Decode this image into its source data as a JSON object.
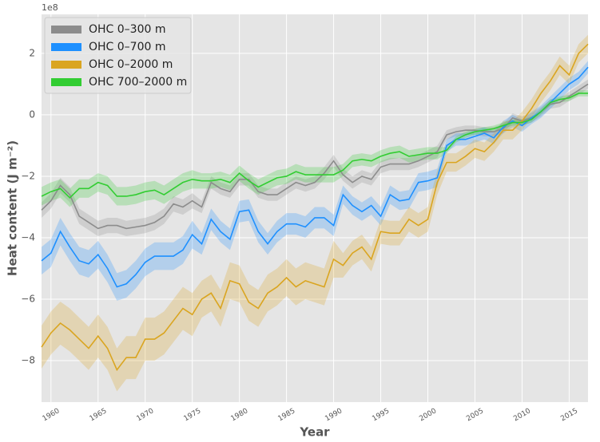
{
  "chart_data": {
    "type": "line",
    "offset_label": "1e8",
    "x_label": "Year",
    "y_label": "Heat content (J m⁻²)",
    "x": [
      1959,
      1960,
      1961,
      1962,
      1963,
      1964,
      1965,
      1966,
      1967,
      1968,
      1969,
      1970,
      1971,
      1972,
      1973,
      1974,
      1975,
      1976,
      1977,
      1978,
      1979,
      1980,
      1981,
      1982,
      1983,
      1984,
      1985,
      1986,
      1987,
      1988,
      1989,
      1990,
      1991,
      1992,
      1993,
      1994,
      1995,
      1996,
      1997,
      1998,
      1999,
      2000,
      2001,
      2002,
      2003,
      2004,
      2005,
      2006,
      2007,
      2008,
      2009,
      2010,
      2011,
      2012,
      2013,
      2014,
      2015,
      2016,
      2017
    ],
    "xlim": [
      1959,
      2017
    ],
    "xticks": [
      1960,
      1965,
      1970,
      1975,
      1980,
      1985,
      1990,
      1995,
      2000,
      2005,
      2010,
      2015
    ],
    "ylim": [
      -9.35,
      3.27
    ],
    "yticks": [
      {
        "value": -8,
        "label": "−8"
      },
      {
        "value": -6,
        "label": "−6"
      },
      {
        "value": -4,
        "label": "−4"
      },
      {
        "value": -2,
        "label": "−2"
      },
      0,
      2
    ],
    "grid": true,
    "legend": "upper left",
    "series": [
      {
        "name": "OHC 0–300 m",
        "color": "#8c8c8c",
        "values": [
          -3.1,
          -2.8,
          -2.3,
          -2.6,
          -3.3,
          -3.5,
          -3.7,
          -3.6,
          -3.6,
          -3.7,
          -3.65,
          -3.6,
          -3.5,
          -3.3,
          -2.9,
          -3.0,
          -2.8,
          -3.0,
          -2.2,
          -2.4,
          -2.5,
          -2.1,
          -2.1,
          -2.5,
          -2.6,
          -2.6,
          -2.4,
          -2.2,
          -2.3,
          -2.2,
          -1.9,
          -1.5,
          -1.95,
          -2.2,
          -2.0,
          -2.1,
          -1.7,
          -1.6,
          -1.6,
          -1.6,
          -1.5,
          -1.35,
          -1.2,
          -0.65,
          -0.55,
          -0.5,
          -0.5,
          -0.55,
          -0.55,
          -0.45,
          -0.1,
          -0.2,
          -0.1,
          0.1,
          0.35,
          0.4,
          0.6,
          0.8,
          1.0
        ],
        "errors": [
          0.25,
          0.25,
          0.25,
          0.25,
          0.25,
          0.25,
          0.25,
          0.25,
          0.25,
          0.25,
          0.25,
          0.25,
          0.25,
          0.25,
          0.25,
          0.25,
          0.25,
          0.2,
          0.2,
          0.2,
          0.2,
          0.2,
          0.2,
          0.2,
          0.2,
          0.2,
          0.2,
          0.2,
          0.2,
          0.2,
          0.2,
          0.2,
          0.2,
          0.2,
          0.2,
          0.2,
          0.2,
          0.2,
          0.2,
          0.2,
          0.2,
          0.2,
          0.2,
          0.15,
          0.15,
          0.15,
          0.15,
          0.15,
          0.15,
          0.15,
          0.15,
          0.15,
          0.15,
          0.15,
          0.15,
          0.15,
          0.15,
          0.15,
          0.15
        ]
      },
      {
        "name": "OHC 0–700 m",
        "color": "#1e90ff",
        "values": [
          -4.75,
          -4.5,
          -3.8,
          -4.3,
          -4.75,
          -4.85,
          -4.55,
          -5.0,
          -5.6,
          -5.5,
          -5.2,
          -4.8,
          -4.6,
          -4.6,
          -4.6,
          -4.4,
          -3.9,
          -4.2,
          -3.4,
          -3.8,
          -4.05,
          -3.15,
          -3.1,
          -3.8,
          -4.2,
          -3.8,
          -3.55,
          -3.55,
          -3.65,
          -3.35,
          -3.35,
          -3.6,
          -2.6,
          -2.95,
          -3.15,
          -2.95,
          -3.3,
          -2.6,
          -2.8,
          -2.75,
          -2.2,
          -2.15,
          -2.05,
          -1.0,
          -0.8,
          -0.8,
          -0.7,
          -0.6,
          -0.75,
          -0.4,
          -0.2,
          -0.35,
          -0.1,
          0.1,
          0.4,
          0.7,
          1.0,
          1.2,
          1.55
        ],
        "errors": [
          0.45,
          0.45,
          0.45,
          0.45,
          0.45,
          0.45,
          0.45,
          0.45,
          0.45,
          0.45,
          0.45,
          0.45,
          0.45,
          0.45,
          0.45,
          0.45,
          0.45,
          0.35,
          0.35,
          0.35,
          0.35,
          0.35,
          0.35,
          0.35,
          0.35,
          0.35,
          0.35,
          0.35,
          0.35,
          0.35,
          0.35,
          0.35,
          0.3,
          0.3,
          0.3,
          0.3,
          0.3,
          0.3,
          0.3,
          0.3,
          0.3,
          0.3,
          0.3,
          0.2,
          0.2,
          0.2,
          0.2,
          0.2,
          0.2,
          0.2,
          0.2,
          0.2,
          0.2,
          0.2,
          0.2,
          0.2,
          0.2,
          0.2,
          0.2
        ]
      },
      {
        "name": "OHC 0–2000 m",
        "color": "#daa520",
        "values": [
          -7.56,
          -7.1,
          -6.78,
          -7.0,
          -7.3,
          -7.6,
          -7.2,
          -7.6,
          -8.3,
          -7.9,
          -7.9,
          -7.3,
          -7.3,
          -7.1,
          -6.7,
          -6.3,
          -6.5,
          -6.0,
          -5.8,
          -6.3,
          -5.4,
          -5.5,
          -6.1,
          -6.3,
          -5.8,
          -5.6,
          -5.3,
          -5.6,
          -5.4,
          -5.5,
          -5.6,
          -4.7,
          -4.9,
          -4.5,
          -4.3,
          -4.7,
          -3.8,
          -3.85,
          -3.85,
          -3.4,
          -3.6,
          -3.4,
          -2.2,
          -1.55,
          -1.55,
          -1.35,
          -1.1,
          -1.2,
          -0.9,
          -0.5,
          -0.5,
          -0.2,
          0.2,
          0.7,
          1.1,
          1.6,
          1.3,
          2.0,
          2.3
        ],
        "errors": [
          0.7,
          0.7,
          0.7,
          0.7,
          0.7,
          0.7,
          0.7,
          0.7,
          0.7,
          0.7,
          0.7,
          0.7,
          0.7,
          0.7,
          0.7,
          0.7,
          0.7,
          0.6,
          0.6,
          0.6,
          0.6,
          0.6,
          0.6,
          0.6,
          0.6,
          0.6,
          0.6,
          0.6,
          0.6,
          0.6,
          0.6,
          0.6,
          0.4,
          0.4,
          0.4,
          0.4,
          0.4,
          0.4,
          0.4,
          0.4,
          0.4,
          0.4,
          0.4,
          0.3,
          0.3,
          0.3,
          0.3,
          0.3,
          0.3,
          0.3,
          0.3,
          0.3,
          0.3,
          0.3,
          0.3,
          0.3,
          0.3,
          0.3,
          0.3
        ]
      },
      {
        "name": "OHC 700–2000 m",
        "color": "#32cd32",
        "values": [
          -2.65,
          -2.5,
          -2.4,
          -2.7,
          -2.4,
          -2.4,
          -2.2,
          -2.3,
          -2.65,
          -2.65,
          -2.6,
          -2.5,
          -2.45,
          -2.6,
          -2.4,
          -2.2,
          -2.1,
          -2.15,
          -2.15,
          -2.1,
          -2.2,
          -1.9,
          -2.15,
          -2.35,
          -2.2,
          -2.05,
          -2.0,
          -1.85,
          -1.95,
          -1.95,
          -1.95,
          -1.95,
          -1.8,
          -1.5,
          -1.45,
          -1.5,
          -1.35,
          -1.25,
          -1.2,
          -1.35,
          -1.3,
          -1.25,
          -1.25,
          -1.15,
          -0.8,
          -0.65,
          -0.55,
          -0.5,
          -0.45,
          -0.35,
          -0.25,
          -0.25,
          -0.15,
          0.1,
          0.4,
          0.5,
          0.55,
          0.7,
          0.7
        ],
        "errors": [
          0.3,
          0.3,
          0.3,
          0.3,
          0.3,
          0.3,
          0.3,
          0.3,
          0.3,
          0.3,
          0.3,
          0.3,
          0.3,
          0.3,
          0.3,
          0.3,
          0.3,
          0.25,
          0.25,
          0.25,
          0.25,
          0.25,
          0.25,
          0.25,
          0.25,
          0.25,
          0.25,
          0.25,
          0.25,
          0.25,
          0.25,
          0.25,
          0.2,
          0.2,
          0.2,
          0.2,
          0.2,
          0.2,
          0.2,
          0.2,
          0.2,
          0.2,
          0.2,
          0.1,
          0.1,
          0.1,
          0.1,
          0.1,
          0.1,
          0.1,
          0.1,
          0.1,
          0.1,
          0.1,
          0.1,
          0.1,
          0.1,
          0.1,
          0.1
        ]
      }
    ]
  }
}
